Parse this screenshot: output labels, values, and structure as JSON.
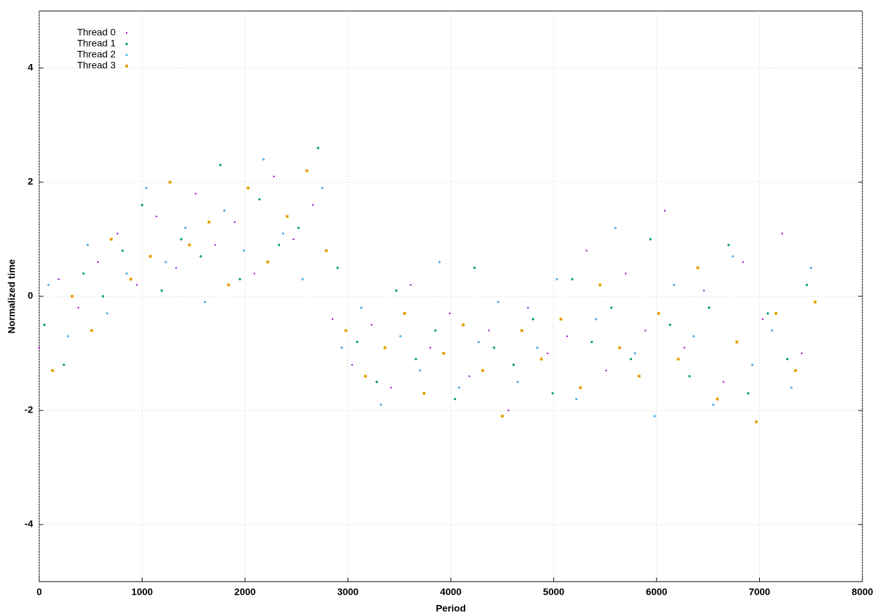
{
  "chart_data": {
    "type": "scatter",
    "xlabel": "Period",
    "ylabel": "Normalized time",
    "xlim": [
      0,
      8000
    ],
    "ylim": [
      -5,
      5
    ],
    "xticks": [
      0,
      1000,
      2000,
      3000,
      4000,
      5000,
      6000,
      7000,
      8000
    ],
    "yticks": [
      -4,
      -2,
      0,
      2,
      4
    ],
    "grid": true,
    "legend": "top-left",
    "series": [
      {
        "name": "Thread 0",
        "color": "#9400d3",
        "x": [
          0,
          190,
          380,
          570,
          760,
          950,
          1140,
          1330,
          1520,
          1710,
          1900,
          2090,
          2280,
          2470,
          2660,
          2850,
          3040,
          3230,
          3420,
          3610,
          3800,
          3990,
          4180,
          4370,
          4560,
          4750,
          4940,
          5130,
          5320,
          5510,
          5700,
          5890,
          6080,
          6270,
          6460,
          6650,
          6840,
          7030,
          7220,
          7410
        ],
        "values": [
          -0.9,
          0.3,
          -0.2,
          0.6,
          1.1,
          0.2,
          1.4,
          0.5,
          1.8,
          0.9,
          1.3,
          0.4,
          2.1,
          1.0,
          1.6,
          -0.4,
          -1.2,
          -0.5,
          -1.6,
          0.2,
          -0.9,
          -0.3,
          -1.4,
          -0.6,
          -2.0,
          -0.2,
          -1.0,
          -0.7,
          0.8,
          -1.3,
          0.4,
          -0.6,
          1.5,
          -0.9,
          0.1,
          -1.5,
          0.6,
          -0.4,
          1.1,
          -1.0
        ]
      },
      {
        "name": "Thread 1",
        "color": "#009e73",
        "x": [
          50,
          240,
          430,
          620,
          810,
          1000,
          1190,
          1380,
          1570,
          1760,
          1950,
          2140,
          2330,
          2520,
          2710,
          2900,
          3090,
          3280,
          3470,
          3660,
          3850,
          4040,
          4230,
          4420,
          4610,
          4800,
          4990,
          5180,
          5370,
          5560,
          5750,
          5940,
          6130,
          6320,
          6510,
          6700,
          6890,
          7080,
          7270,
          7460
        ],
        "values": [
          -0.5,
          -1.2,
          0.4,
          0.0,
          0.8,
          1.6,
          0.1,
          1.0,
          0.7,
          2.3,
          0.3,
          1.7,
          0.9,
          1.2,
          2.6,
          0.5,
          -0.8,
          -1.5,
          0.1,
          -1.1,
          -0.6,
          -1.8,
          0.5,
          -0.9,
          -1.2,
          -0.4,
          -1.7,
          0.3,
          -0.8,
          -0.2,
          -1.1,
          1.0,
          -0.5,
          -1.4,
          -0.2,
          0.9,
          -1.7,
          -0.3,
          -1.1,
          0.2
        ]
      },
      {
        "name": "Thread 2",
        "color": "#56b4e9",
        "x": [
          90,
          280,
          470,
          660,
          850,
          1040,
          1230,
          1420,
          1610,
          1800,
          1990,
          2180,
          2370,
          2560,
          2750,
          2940,
          3130,
          3320,
          3510,
          3700,
          3890,
          4080,
          4270,
          4460,
          4650,
          4840,
          5030,
          5220,
          5410,
          5600,
          5790,
          5980,
          6170,
          6360,
          6550,
          6740,
          6930,
          7120,
          7310,
          7500
        ],
        "values": [
          0.2,
          -0.7,
          0.9,
          -0.3,
          0.4,
          1.9,
          0.6,
          1.2,
          -0.1,
          1.5,
          0.8,
          2.4,
          1.1,
          0.3,
          1.9,
          -0.9,
          -0.2,
          -1.9,
          -0.7,
          -1.3,
          0.6,
          -1.6,
          -0.8,
          -0.1,
          -1.5,
          -0.9,
          0.3,
          -1.8,
          -0.4,
          1.2,
          -1.0,
          -2.1,
          0.2,
          -0.7,
          -1.9,
          0.7,
          -1.2,
          -0.6,
          -1.6,
          0.5
        ]
      },
      {
        "name": "Thread 3",
        "color": "#e69f00",
        "x": [
          130,
          320,
          510,
          700,
          890,
          1080,
          1270,
          1460,
          1650,
          1840,
          2030,
          2220,
          2410,
          2600,
          2790,
          2980,
          3170,
          3360,
          3550,
          3740,
          3930,
          4120,
          4310,
          4500,
          4690,
          4880,
          5070,
          5260,
          5450,
          5640,
          5830,
          6020,
          6210,
          6400,
          6590,
          6780,
          6970,
          7160,
          7350,
          7540
        ],
        "values": [
          -1.3,
          0.0,
          -0.6,
          1.0,
          0.3,
          0.7,
          2.0,
          0.9,
          1.3,
          0.2,
          1.9,
          0.6,
          1.4,
          2.2,
          0.8,
          -0.6,
          -1.4,
          -0.9,
          -0.3,
          -1.7,
          -1.0,
          -0.5,
          -1.3,
          -2.1,
          -0.6,
          -1.1,
          -0.4,
          -1.6,
          0.2,
          -0.9,
          -1.4,
          -0.3,
          -1.1,
          0.5,
          -1.8,
          -0.8,
          -2.2,
          -0.3,
          -1.3,
          -0.1
        ]
      }
    ]
  }
}
